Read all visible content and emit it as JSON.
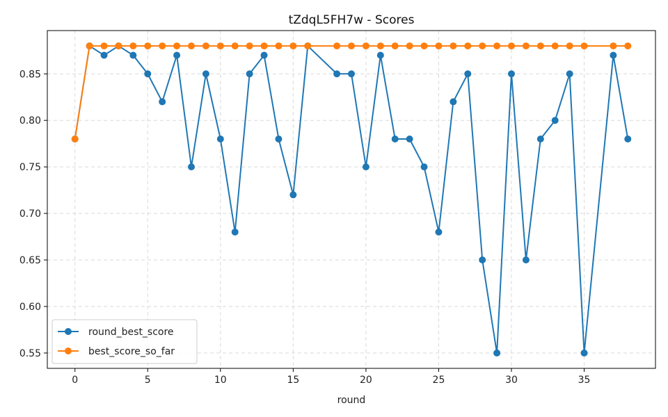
{
  "chart_data": {
    "type": "line",
    "title": "tZdqL5FH7w - Scores",
    "xlabel": "round",
    "ylabel": "",
    "xlim": [
      -1.9,
      39.9
    ],
    "ylim": [
      0.5335,
      0.8965
    ],
    "xticks": [
      0,
      5,
      10,
      15,
      20,
      25,
      30,
      35
    ],
    "yticks": [
      0.55,
      0.6,
      0.65,
      0.7,
      0.75,
      0.8,
      0.85
    ],
    "ytick_labels": [
      "0.55",
      "0.60",
      "0.65",
      "0.70",
      "0.75",
      "0.80",
      "0.85"
    ],
    "grid": true,
    "legend_position": "lower-left",
    "series": [
      {
        "name": "round_best_score",
        "color": "#1f77b4",
        "x": [
          0,
          1,
          2,
          3,
          4,
          5,
          6,
          7,
          8,
          9,
          10,
          11,
          12,
          13,
          14,
          15,
          16,
          18,
          19,
          20,
          21,
          22,
          23,
          24,
          25,
          26,
          27,
          28,
          29,
          30,
          31,
          32,
          33,
          34,
          35,
          37,
          38
        ],
        "values": [
          0.78,
          0.88,
          0.87,
          0.88,
          0.87,
          0.85,
          0.82,
          0.87,
          0.75,
          0.85,
          0.78,
          0.68,
          0.85,
          0.87,
          0.78,
          0.72,
          0.88,
          0.85,
          0.85,
          0.75,
          0.87,
          0.78,
          0.78,
          0.75,
          0.68,
          0.82,
          0.85,
          0.65,
          0.55,
          0.85,
          0.65,
          0.78,
          0.8,
          0.85,
          0.55,
          0.87,
          0.78
        ]
      },
      {
        "name": "best_score_so_far",
        "color": "#ff7f0e",
        "x": [
          0,
          1,
          2,
          3,
          4,
          5,
          6,
          7,
          8,
          9,
          10,
          11,
          12,
          13,
          14,
          15,
          16,
          18,
          19,
          20,
          21,
          22,
          23,
          24,
          25,
          26,
          27,
          28,
          29,
          30,
          31,
          32,
          33,
          34,
          35,
          37,
          38
        ],
        "values": [
          0.78,
          0.88,
          0.88,
          0.88,
          0.88,
          0.88,
          0.88,
          0.88,
          0.88,
          0.88,
          0.88,
          0.88,
          0.88,
          0.88,
          0.88,
          0.88,
          0.88,
          0.88,
          0.88,
          0.88,
          0.88,
          0.88,
          0.88,
          0.88,
          0.88,
          0.88,
          0.88,
          0.88,
          0.88,
          0.88,
          0.88,
          0.88,
          0.88,
          0.88,
          0.88,
          0.88,
          0.88
        ]
      }
    ]
  }
}
